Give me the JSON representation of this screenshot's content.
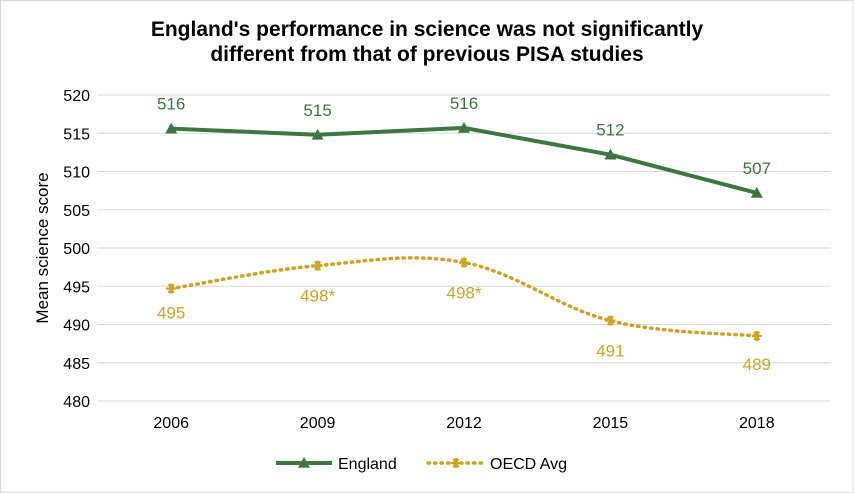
{
  "chart_data": {
    "type": "line",
    "title": [
      "England's performance in science was not significantly",
      "different from that of previous PISA studies"
    ],
    "ylabel": "Mean science score",
    "xlabel": "",
    "categories": [
      "2006",
      "2009",
      "2012",
      "2015",
      "2018"
    ],
    "ylim": [
      480,
      520
    ],
    "yticks": [
      "480",
      "485",
      "490",
      "495",
      "500",
      "505",
      "510",
      "515",
      "520"
    ],
    "grid": true,
    "legend_position": "bottom",
    "series": [
      {
        "name": "England",
        "values": [
          515.6,
          514.8,
          515.7,
          512.2,
          507.2
        ],
        "labels": [
          "516",
          "515",
          "516",
          "512",
          "507"
        ],
        "color": "#3c7640",
        "style": "solid",
        "marker": "triangle"
      },
      {
        "name": "OECD Avg",
        "values": [
          494.7,
          497.7,
          498.1,
          490.5,
          488.5
        ],
        "labels": [
          "495",
          "498*",
          "498*",
          "491",
          "489"
        ],
        "color": "#c9a81f",
        "style": "dotted",
        "marker": "star"
      }
    ]
  }
}
